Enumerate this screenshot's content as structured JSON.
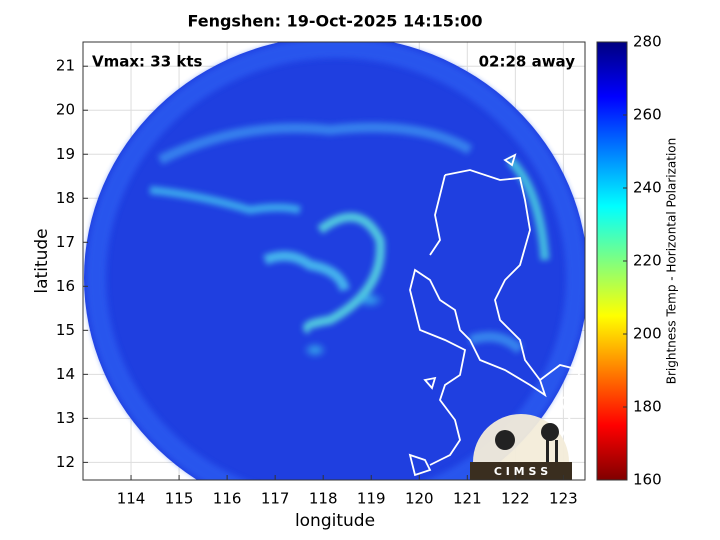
{
  "chart_data": {
    "type": "heatmap",
    "title": "Fengshen: 19-Oct-2025 14:15:00",
    "annotations": [
      "Vmax: 33 kts",
      "02:28 away"
    ],
    "xlabel": "longitude",
    "ylabel": "latitude",
    "xlim": [
      113,
      123.45
    ],
    "ylim": [
      11.6,
      21.55
    ],
    "xticks": [
      114,
      115,
      116,
      117,
      118,
      119,
      120,
      121,
      122,
      123
    ],
    "yticks": [
      12,
      13,
      14,
      15,
      16,
      17,
      18,
      19,
      20,
      21
    ],
    "grid": true,
    "colorbar": {
      "label": "Brightness Temp - Horizontal Polarization",
      "lim": [
        160,
        280
      ],
      "ticks": [
        160,
        180,
        200,
        220,
        240,
        260,
        280
      ],
      "colormap": "jet"
    },
    "logo": "C I M S S"
  }
}
